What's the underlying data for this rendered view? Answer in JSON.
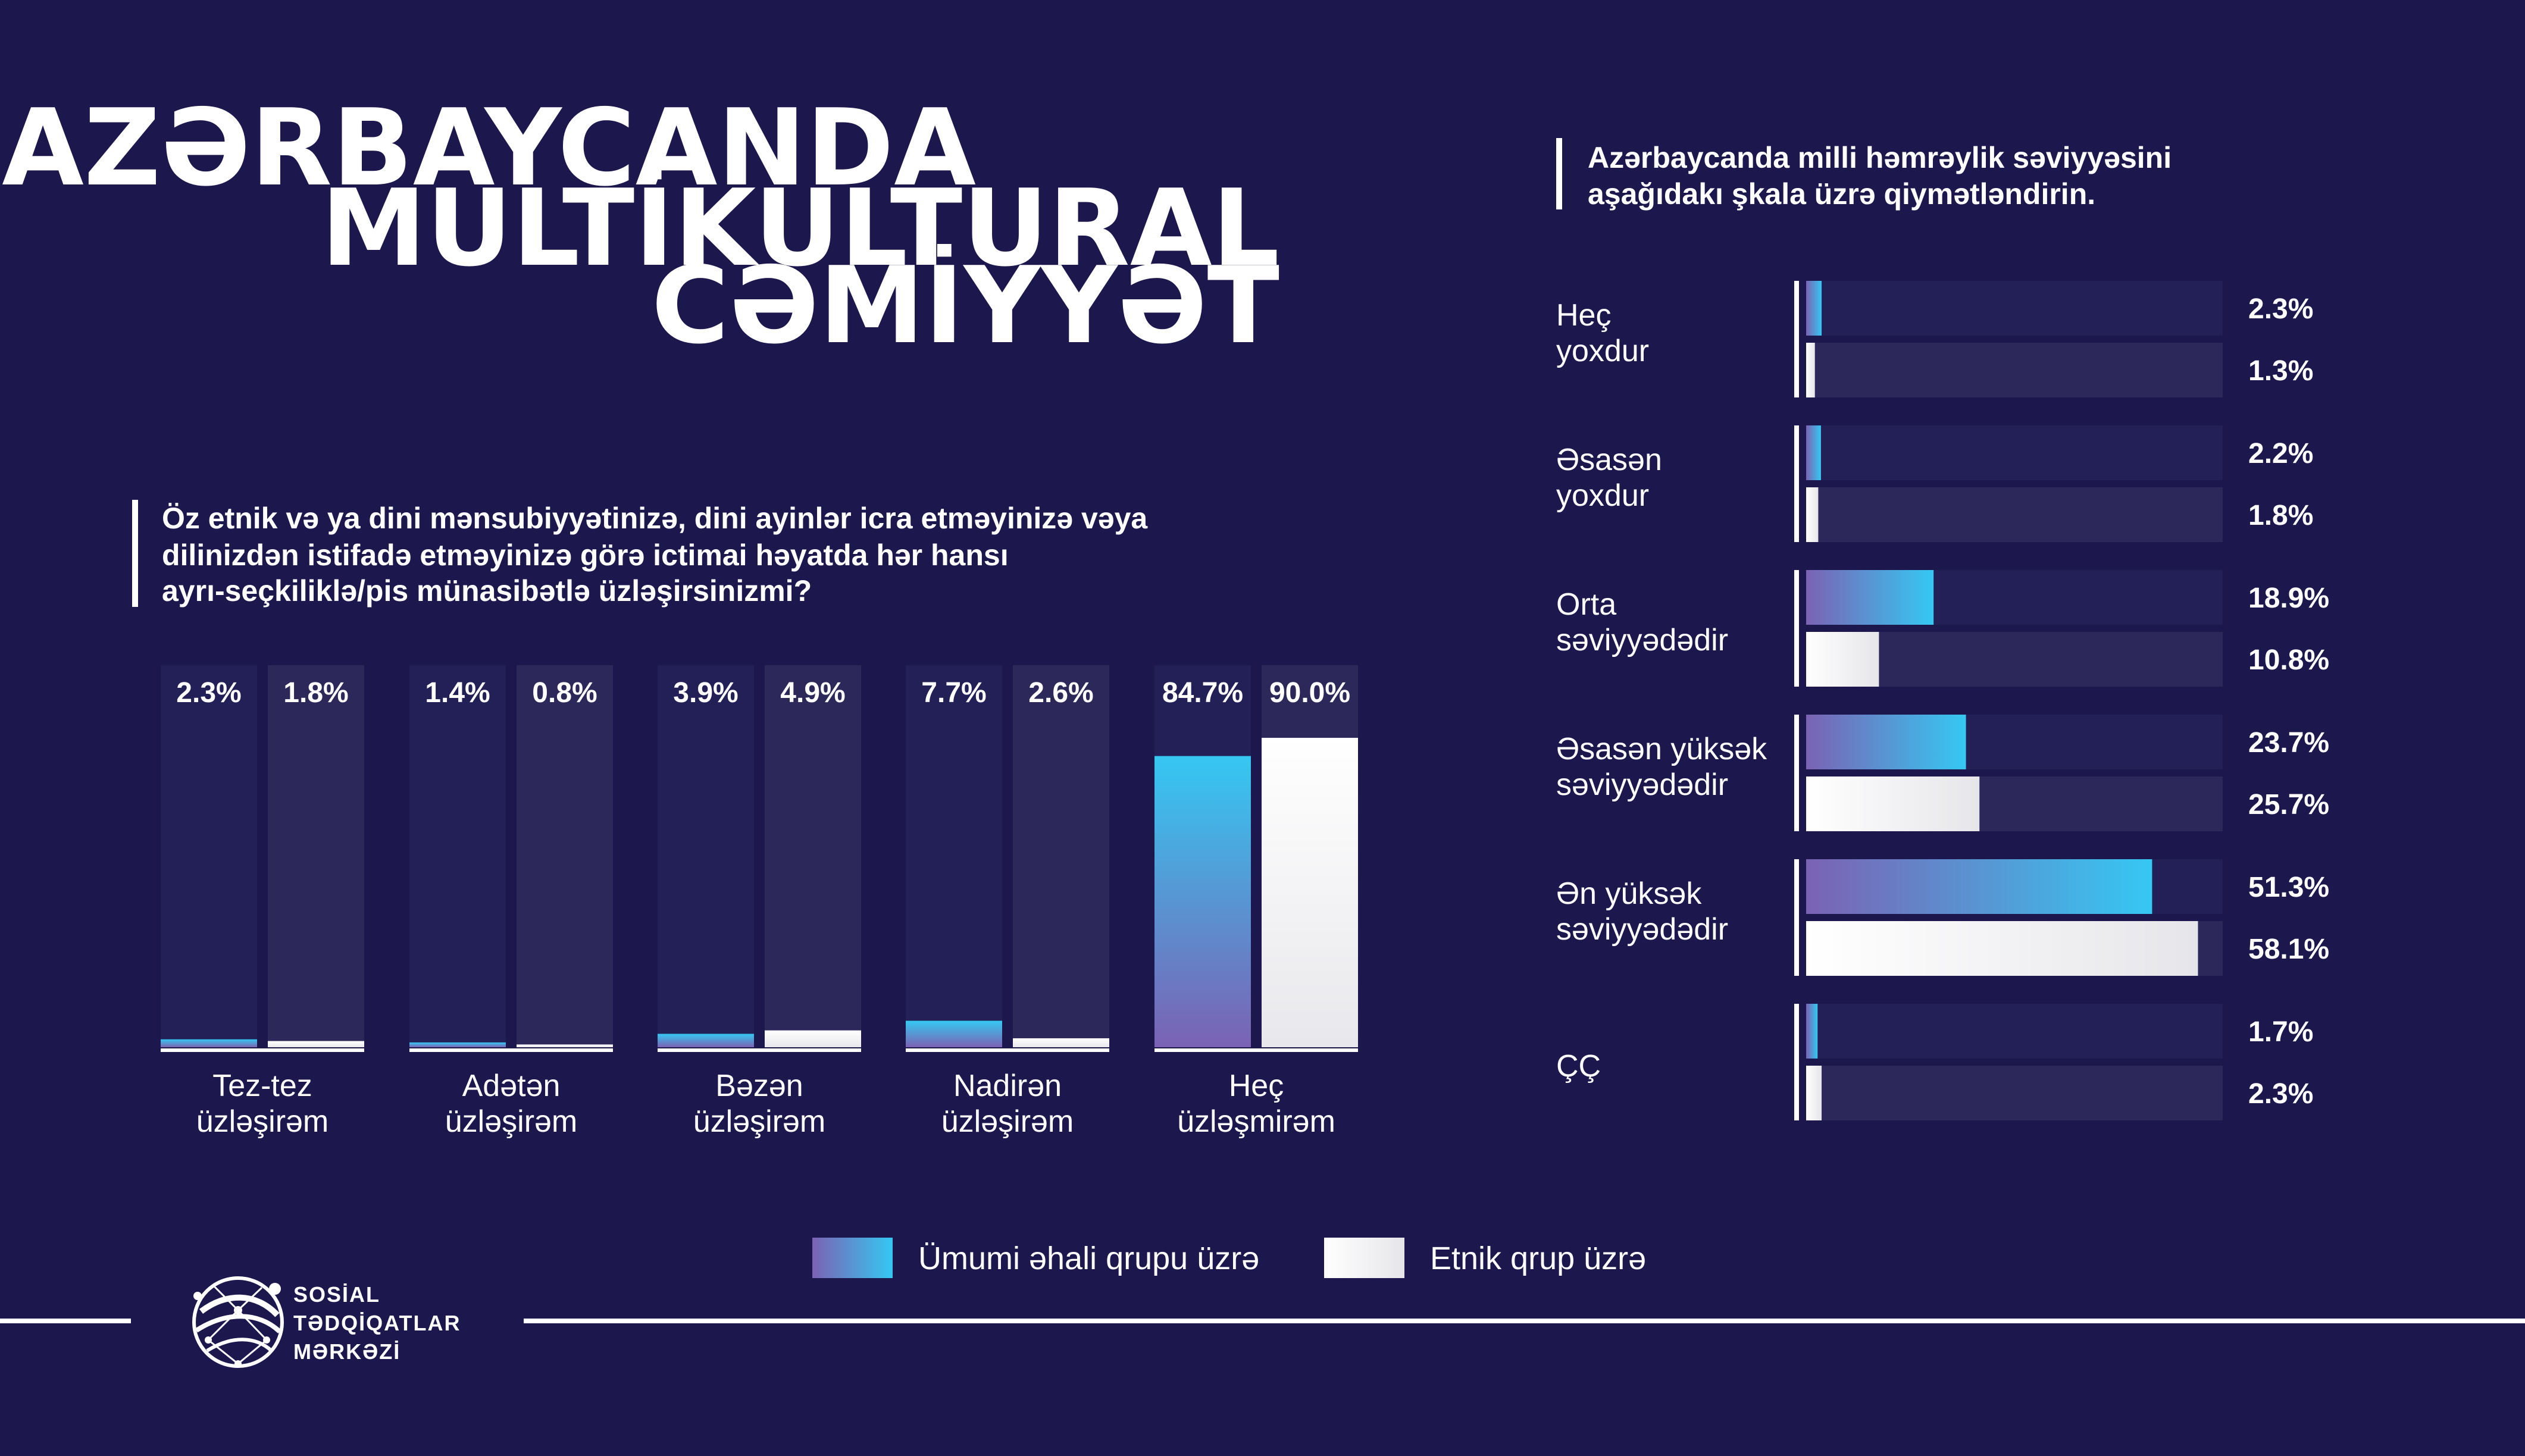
{
  "title": {
    "line1": "AZƏRBAYCANDA",
    "line2": "MULTİKULTURAL",
    "line3": "CƏMİYYƏT"
  },
  "legend": {
    "general": "Ümumi əhali qrupu üzrə",
    "ethnic": "Etnik qrup üzrə"
  },
  "logo": {
    "line1": "SOSİAL",
    "line2": "TƏDQİQATLAR",
    "line3": "MƏRKƏZİ"
  },
  "colors": {
    "background": "#1c184e",
    "gradient_start": "#7b62b3",
    "gradient_end": "#35c8f2",
    "white_bar": "#f2f2f4",
    "track_general": "#231f57",
    "track_ethnic": "#2c2859"
  },
  "chart_data": [
    {
      "type": "bar",
      "orientation": "vertical",
      "title": "Öz etnik və ya dini mənsubiyyətinizə, dini ayinlər icra etməyinizə vəya dilinizdən istifadə etməyinizə görə ictimai həyatda hər hansı ayrı-seçkiliklə/pis münasibətlə üzləşirsinizmi?",
      "title_lines": [
        "Öz etnik və ya dini mənsubiyyətinizə, dini ayinlər icra etməyinizə vəya",
        "dilinizdən istifadə etməyinizə görə ictimai həyatda hər hansı",
        "ayrı-seçkiliklə/pis münasibətlə üzləşirsinizmi?"
      ],
      "categories": [
        [
          "Tez-tez",
          "üzləşirəm"
        ],
        [
          "Adətən",
          "üzləşirəm"
        ],
        [
          "Bəzən",
          "üzləşirəm"
        ],
        [
          "Nadirən",
          "üzləşirəm"
        ],
        [
          "Heç",
          "üzləşmirəm"
        ]
      ],
      "series": [
        {
          "name": "Ümumi əhali qrupu üzrə",
          "values": [
            2.3,
            1.4,
            3.9,
            7.7,
            84.7
          ],
          "labels": [
            "2.3%",
            "1.4%",
            "3.9%",
            "7.7%",
            "84.7%"
          ]
        },
        {
          "name": "Etnik qrup üzrə",
          "values": [
            1.8,
            0.8,
            4.9,
            2.6,
            90.0
          ],
          "labels": [
            "1.8%",
            "0.8%",
            "4.9%",
            "2.6%",
            "90.0%"
          ]
        }
      ],
      "ylim": [
        0,
        100
      ]
    },
    {
      "type": "bar",
      "orientation": "horizontal",
      "title": "Azərbaycanda milli həmrəylik səviyyəsini aşağıdakı şkala üzrə qiymətləndirin.",
      "title_lines": [
        "Azərbaycanda milli həmrəylik səviyyəsini",
        "aşağıdakı şkala üzrə qiymətləndirin."
      ],
      "categories": [
        [
          "Heç",
          "yoxdur"
        ],
        [
          "Əsasən",
          "yoxdur"
        ],
        [
          "Orta",
          "səviyyədədir"
        ],
        [
          "Əsasən yüksək",
          "səviyyədədir"
        ],
        [
          "Ən yüksək",
          "səviyyədədir"
        ],
        [
          "ÇÇ"
        ]
      ],
      "series": [
        {
          "name": "Ümumi əhali qrupu üzrə",
          "values": [
            2.3,
            2.2,
            18.9,
            23.7,
            51.3,
            1.7
          ],
          "labels": [
            "2.3%",
            "2.2%",
            "18.9%",
            "23.7%",
            "51.3%",
            "1.7%"
          ]
        },
        {
          "name": "Etnik qrup üzrə",
          "values": [
            1.3,
            1.8,
            10.8,
            25.7,
            58.1,
            2.3
          ],
          "labels": [
            "1.3%",
            "1.8%",
            "10.8%",
            "25.7%",
            "58.1%",
            "2.3%"
          ]
        }
      ],
      "xlim": [
        0,
        60
      ]
    }
  ]
}
